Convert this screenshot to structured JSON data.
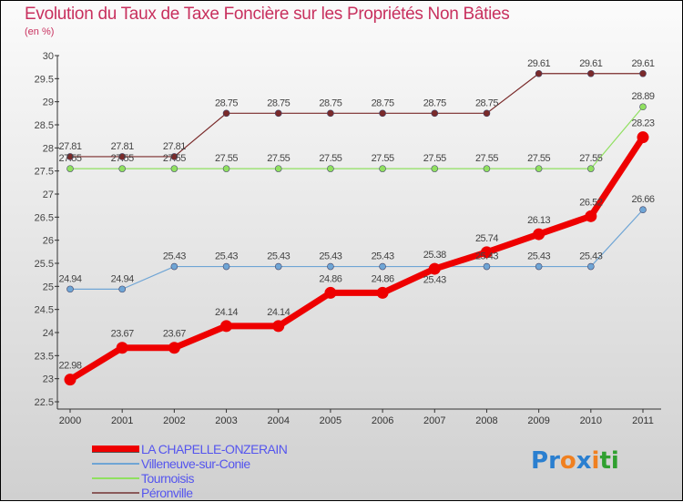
{
  "chart_data": {
    "type": "line",
    "title": "Evolution du Taux de Taxe Foncière sur les Propriétés Non Bâties",
    "ylabel": "(en %)",
    "xlabel": "",
    "x": [
      "2000",
      "2001",
      "2002",
      "2003",
      "2004",
      "2005",
      "2006",
      "2007",
      "2008",
      "2009",
      "2010",
      "2011"
    ],
    "ylim": [
      22.5,
      30
    ],
    "yticks": [
      "22.5",
      "23",
      "23.5",
      "24",
      "24.5",
      "25",
      "25.5",
      "26",
      "26.5",
      "27",
      "27.5",
      "28",
      "28.5",
      "29",
      "29.5",
      "30"
    ],
    "legend_position": "bottom-left",
    "series": [
      {
        "name": "Péronville",
        "color": "#7a2a2a",
        "width": 1.2,
        "marker": 3.5,
        "values": [
          27.81,
          27.81,
          27.81,
          28.75,
          28.75,
          28.75,
          28.75,
          28.75,
          28.75,
          29.61,
          29.61,
          29.61
        ]
      },
      {
        "name": "Tournoisis",
        "color": "#90e060",
        "width": 1.2,
        "marker": 3.5,
        "values": [
          27.55,
          27.55,
          27.55,
          27.55,
          27.55,
          27.55,
          27.55,
          27.55,
          27.55,
          27.55,
          27.55,
          28.89
        ]
      },
      {
        "name": "Villeneuve-sur-Conie",
        "color": "#6fa5d5",
        "width": 1.2,
        "marker": 3.5,
        "values": [
          24.94,
          24.94,
          25.43,
          25.43,
          25.43,
          25.43,
          25.43,
          25.43,
          25.43,
          25.43,
          25.43,
          26.66
        ]
      },
      {
        "name": "LA CHAPELLE-ONZERAIN",
        "color": "#ee0000",
        "width": 7,
        "marker": 6.5,
        "values": [
          22.98,
          23.67,
          23.67,
          24.14,
          24.14,
          24.86,
          24.86,
          25.38,
          25.74,
          26.13,
          26.52,
          28.23
        ]
      }
    ]
  },
  "legend": [
    "LA CHAPELLE-ONZERAIN",
    "Villeneuve-sur-Conie",
    "Tournoisis",
    "Péronville"
  ],
  "legend_colors": [
    "#ee0000",
    "#6fa5d5",
    "#90e060",
    "#8a5a5a"
  ],
  "logo": {
    "text": "Proxiti",
    "letters": [
      [
        "P",
        "#2a7fd0"
      ],
      [
        "r",
        "#2a7fd0"
      ],
      [
        "o",
        "#f08020"
      ],
      [
        "x",
        "#2a7fd0"
      ],
      [
        "i",
        "#f08020"
      ],
      [
        "t",
        "#30a030"
      ],
      [
        "i",
        "#30a030"
      ]
    ]
  }
}
